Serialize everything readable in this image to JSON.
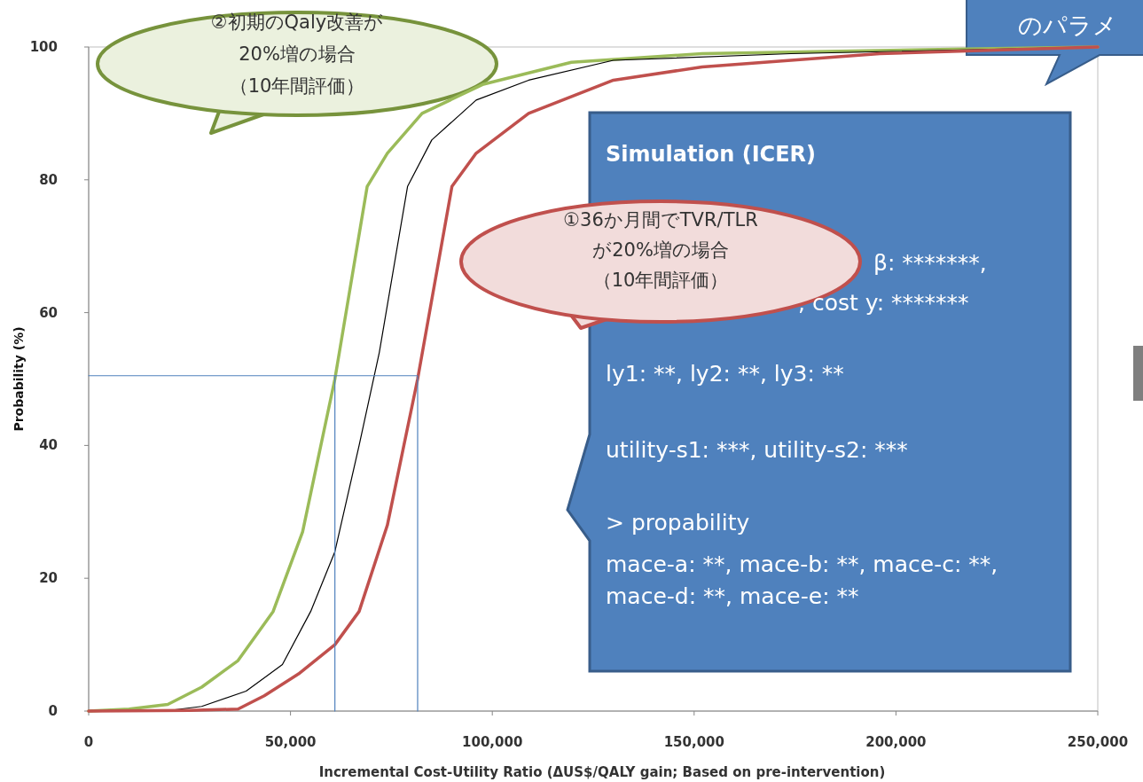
{
  "chart_data": {
    "type": "line",
    "xlabel": "Incremental Cost-Utility Ratio (ΔUS$/QALY gain; Based on pre-intervention)",
    "ylabel": "Probability (%)",
    "xlim": [
      0,
      250000
    ],
    "xticks": [
      0,
      {
        "value": 50000,
        "label": "50,000"
      },
      {
        "value": 100000,
        "label": "100,000"
      },
      {
        "value": 150000,
        "label": "150,000"
      },
      {
        "value": 200000,
        "label": "200,000"
      },
      {
        "value": 250000,
        "label": "250,000"
      }
    ],
    "ylim": [
      0,
      100
    ],
    "yticks": [
      0,
      20,
      40,
      60,
      80,
      100
    ],
    "grid": false,
    "series": [
      {
        "color": "#9bbb59",
        "x": [
          0,
          10000,
          19600,
          28000,
          37000,
          45700,
          53000,
          61000,
          69000,
          74000,
          82600,
          97800,
          119600,
          152000,
          217000,
          250000
        ],
        "values": [
          0,
          0.3,
          1,
          3.6,
          7.6,
          15,
          27,
          50,
          79,
          84,
          90,
          94.4,
          97.7,
          99,
          99.7,
          100
        ]
      },
      {
        "color": "#000000",
        "x": [
          0,
          20000,
          28000,
          39000,
          48000,
          55000,
          61000,
          67000,
          72000,
          79000,
          85000,
          96000,
          109000,
          130000,
          174000,
          250000
        ],
        "values": [
          0,
          0.1,
          0.7,
          3,
          7,
          15,
          24,
          40,
          54,
          79,
          86,
          92,
          95,
          98,
          99,
          100
        ]
      },
      {
        "color": "#c0504d",
        "x": [
          0,
          25000,
          37000,
          43500,
          52000,
          61000,
          67000,
          74000,
          81500,
          90000,
          96000,
          109000,
          130000,
          152000,
          196000,
          250000
        ],
        "values": [
          0,
          0.1,
          0.3,
          2.3,
          5.6,
          10,
          15,
          28,
          50,
          79,
          84,
          90,
          95,
          97,
          99,
          100
        ]
      },
      {
        "color": "#4f81bd",
        "x": [
          0,
          81500,
          81500
        ],
        "values": [
          50.5,
          50.5,
          0
        ]
      },
      {
        "color": "#4f81bd",
        "x": [
          61000,
          61000
        ],
        "values": [
          50.5,
          0
        ]
      }
    ],
    "annotations": [
      "②初期のQaly改善が20%増の場合（10年間評価）",
      "①36か月間でTVR/TLRが20%増の場合（10年間評価）",
      "Simulation (ICER)",
      "β: *******,",
      ", cost y: *******",
      "ly1: **, ly2: **, ly3: **",
      "utility-s1: ***, utility-s2: ***",
      "> propability",
      "mace-a: **, mace-b: **, mace-c: **,",
      "mace-d: **, mace-e: **",
      "のパラメ"
    ]
  }
}
